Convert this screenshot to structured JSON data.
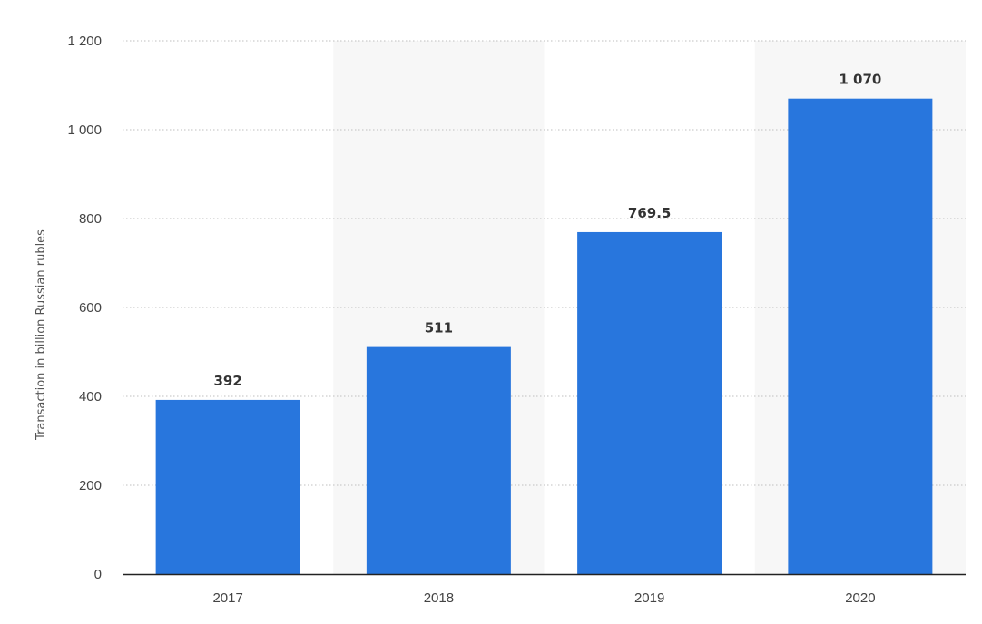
{
  "chart_data": {
    "type": "bar",
    "categories": [
      "2017",
      "2018",
      "2019",
      "2020"
    ],
    "values": [
      392,
      511,
      769.5,
      1070
    ],
    "value_labels": [
      "392",
      "511",
      "769.5",
      "1 070"
    ],
    "ylabel": "Transaction in billion Russian rubles",
    "ylim": [
      0,
      1200
    ],
    "yticks": [
      0,
      200,
      400,
      600,
      800,
      1000,
      1200
    ],
    "ytick_labels": [
      "0",
      "200",
      "400",
      "600",
      "800",
      "1 000",
      "1 200"
    ],
    "grid": true,
    "legend": "none",
    "colors": {
      "bar": "#2876dd",
      "band": "#f7f7f7"
    }
  }
}
